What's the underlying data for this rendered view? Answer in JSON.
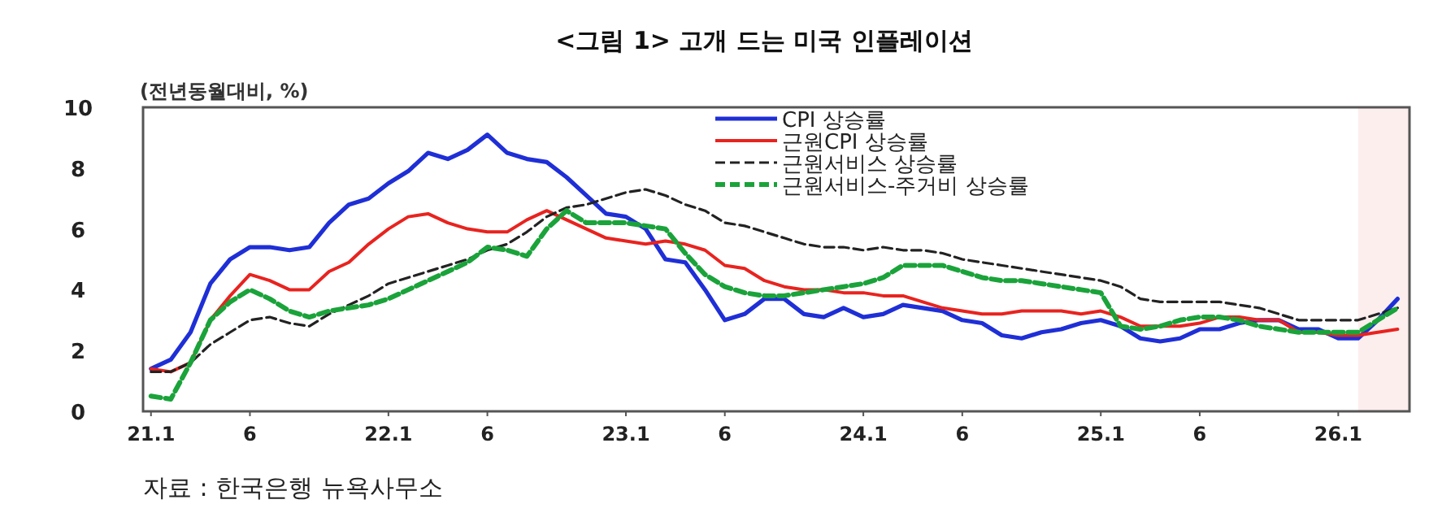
{
  "chart_data": {
    "type": "line",
    "title": "<그림 1> 고개 드는 미국 인플레이션",
    "ylabel": "(전년동월대비, %)",
    "annotations": [
      "자료 : 한국은행 뉴욕사무소"
    ],
    "categories": [
      "21.1",
      null,
      null,
      null,
      null,
      "6",
      null,
      null,
      null,
      null,
      null,
      null,
      "22.1",
      null,
      null,
      null,
      null,
      "6",
      null,
      null,
      null,
      null,
      null,
      null,
      "23.1",
      null,
      null,
      null,
      null,
      "6",
      null,
      null,
      null,
      null,
      null,
      null,
      "24.1",
      null,
      null,
      null,
      null,
      "6",
      null,
      null,
      null,
      null,
      null,
      null,
      "25.1",
      null,
      null,
      null,
      null,
      "6",
      null,
      null,
      null,
      null,
      null,
      null,
      "26.1",
      null,
      null,
      null
    ],
    "series": [
      {
        "name": "CPI 상승률",
        "color": "#1f2fd6",
        "line_style": "solid",
        "values": [
          1.4,
          1.7,
          2.6,
          4.2,
          5.0,
          5.4,
          5.4,
          5.3,
          5.4,
          6.2,
          6.8,
          7.0,
          7.5,
          7.9,
          8.5,
          8.3,
          8.6,
          9.1,
          8.5,
          8.3,
          8.2,
          7.7,
          7.1,
          6.5,
          6.4,
          6.0,
          5.0,
          4.9,
          4.0,
          3.0,
          3.2,
          3.7,
          3.7,
          3.2,
          3.1,
          3.4,
          3.1,
          3.2,
          3.5,
          3.4,
          3.3,
          3.0,
          2.9,
          2.5,
          2.4,
          2.6,
          2.7,
          2.9,
          3.0,
          2.8,
          2.4,
          2.3,
          2.4,
          2.7,
          2.7,
          2.9,
          3.0,
          3.0,
          2.7,
          2.7,
          2.4,
          2.4,
          3.0,
          3.7
        ]
      },
      {
        "name": "근원CPI 상승률",
        "color": "#e8231f",
        "line_style": "solid",
        "values": [
          1.4,
          1.3,
          1.6,
          3.0,
          3.8,
          4.5,
          4.3,
          4.0,
          4.0,
          4.6,
          4.9,
          5.5,
          6.0,
          6.4,
          6.5,
          6.2,
          6.0,
          5.9,
          5.9,
          6.3,
          6.6,
          6.3,
          6.0,
          5.7,
          5.6,
          5.5,
          5.6,
          5.5,
          5.3,
          4.8,
          4.7,
          4.3,
          4.1,
          4.0,
          4.0,
          3.9,
          3.9,
          3.8,
          3.8,
          3.6,
          3.4,
          3.3,
          3.2,
          3.2,
          3.3,
          3.3,
          3.3,
          3.2,
          3.3,
          3.1,
          2.8,
          2.8,
          2.8,
          2.9,
          3.1,
          3.1,
          3.0,
          3.0,
          2.6,
          2.6,
          2.5,
          2.5,
          2.6,
          2.7
        ]
      },
      {
        "name": "근원서비스 상승률",
        "color": "#222222",
        "line_style": "dashed",
        "values": [
          1.3,
          1.3,
          1.6,
          2.2,
          2.6,
          3.0,
          3.1,
          2.9,
          2.8,
          3.2,
          3.5,
          3.8,
          4.2,
          4.4,
          4.6,
          4.8,
          5.0,
          5.3,
          5.5,
          5.9,
          6.4,
          6.7,
          6.8,
          7.0,
          7.2,
          7.3,
          7.1,
          6.8,
          6.6,
          6.2,
          6.1,
          5.9,
          5.7,
          5.5,
          5.4,
          5.4,
          5.3,
          5.4,
          5.3,
          5.3,
          5.2,
          5.0,
          4.9,
          4.8,
          4.7,
          4.6,
          4.5,
          4.4,
          4.3,
          4.1,
          3.7,
          3.6,
          3.6,
          3.6,
          3.6,
          3.5,
          3.4,
          3.2,
          3.0,
          3.0,
          3.0,
          3.0,
          3.2,
          3.4
        ]
      },
      {
        "name": "근원서비스-주거비 상승률",
        "color": "#1aa33a",
        "line_style": "dashed",
        "values": [
          0.5,
          0.4,
          1.6,
          3.0,
          3.6,
          4.0,
          3.7,
          3.3,
          3.1,
          3.3,
          3.4,
          3.5,
          3.7,
          4.0,
          4.3,
          4.6,
          4.9,
          5.4,
          5.3,
          5.1,
          6.0,
          6.6,
          6.2,
          6.2,
          6.2,
          6.1,
          6.0,
          5.2,
          4.5,
          4.1,
          3.9,
          3.8,
          3.8,
          3.9,
          4.0,
          4.1,
          4.2,
          4.4,
          4.8,
          4.8,
          4.8,
          4.6,
          4.4,
          4.3,
          4.3,
          4.2,
          4.1,
          4.0,
          3.9,
          2.8,
          2.7,
          2.8,
          3.0,
          3.1,
          3.1,
          3.0,
          2.8,
          2.7,
          2.6,
          2.6,
          2.6,
          2.6,
          3.0,
          3.4
        ]
      }
    ],
    "ylim": [
      0,
      10
    ],
    "yticks": [
      0,
      2,
      4,
      6,
      8,
      10
    ],
    "legend": "top",
    "grid": false,
    "marker": "none"
  }
}
